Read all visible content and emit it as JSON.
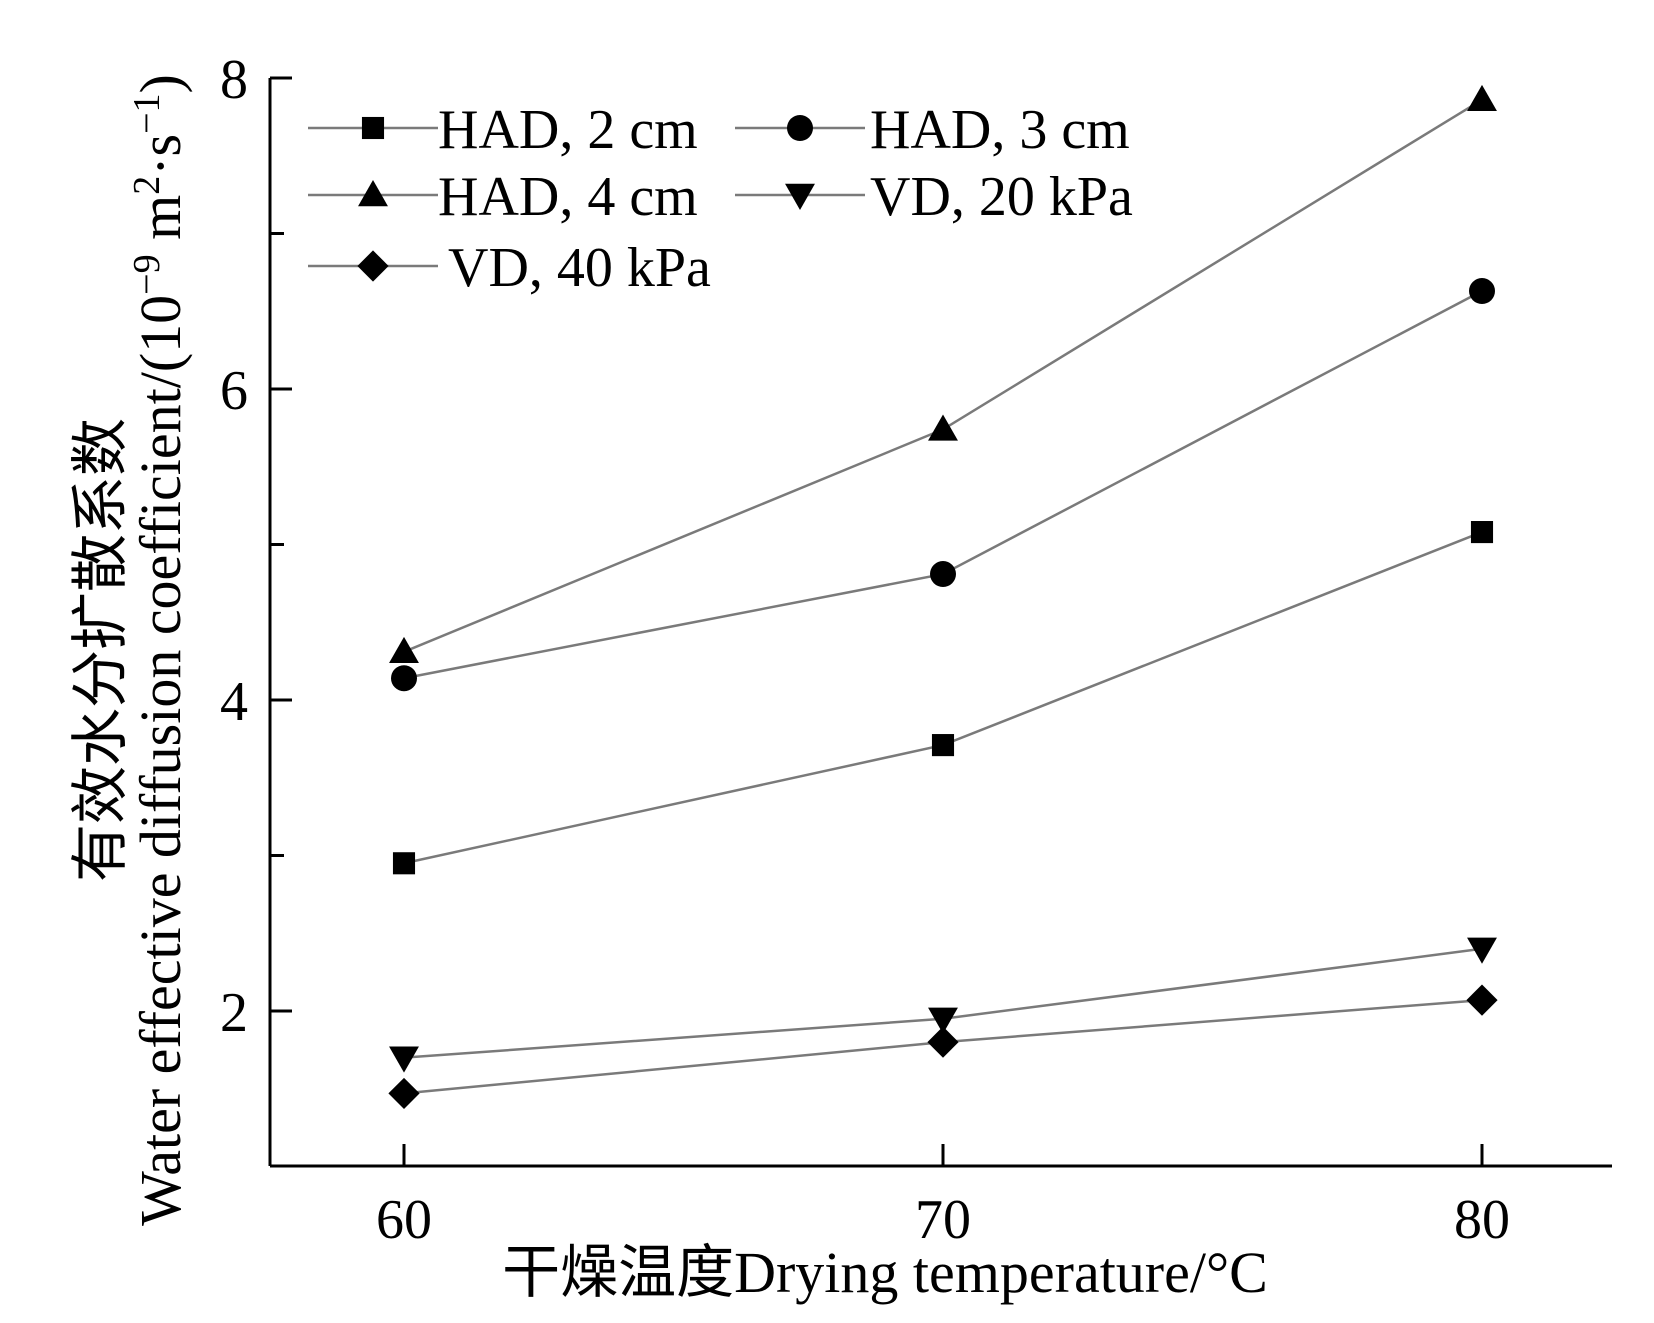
{
  "chart_data": {
    "type": "line",
    "x": [
      60,
      70,
      80
    ],
    "xticks": [
      "60",
      "70",
      "80"
    ],
    "yticks": [
      "2",
      "4",
      "6",
      "8"
    ],
    "ylim": [
      1,
      8
    ],
    "xlim": [
      57.5,
      82.5
    ],
    "xlabel": "干燥温度Drying temperature/°C",
    "ylabel_cn": "有效水分扩散系数",
    "ylabel_en_pre": "Water effective diffusion coefficient/(10",
    "ylabel_exp1": "−9",
    "ylabel_mid": " m",
    "ylabel_exp2": "2",
    "ylabel_mid2": "·s",
    "ylabel_exp3": "−1",
    "ylabel_post": ")",
    "legend_position": "top-left",
    "grid": false,
    "series": [
      {
        "name": "HAD, 2 cm",
        "marker": "square",
        "values": [
          2.95,
          3.71,
          5.08
        ]
      },
      {
        "name": "HAD, 3 cm",
        "marker": "circle",
        "values": [
          4.14,
          4.81,
          6.63
        ]
      },
      {
        "name": "HAD, 4 cm",
        "marker": "triangle-up",
        "values": [
          4.31,
          5.74,
          7.86
        ]
      },
      {
        "name": "VD, 20 kPa",
        "marker": "triangle-down",
        "values": [
          1.7,
          1.95,
          2.4
        ]
      },
      {
        "name": "VD, 40 kPa",
        "marker": "diamond",
        "values": [
          1.47,
          1.8,
          2.07
        ]
      }
    ],
    "colors": {
      "line": "#7a7a7a",
      "marker": "#000000",
      "axis": "#000000"
    }
  }
}
